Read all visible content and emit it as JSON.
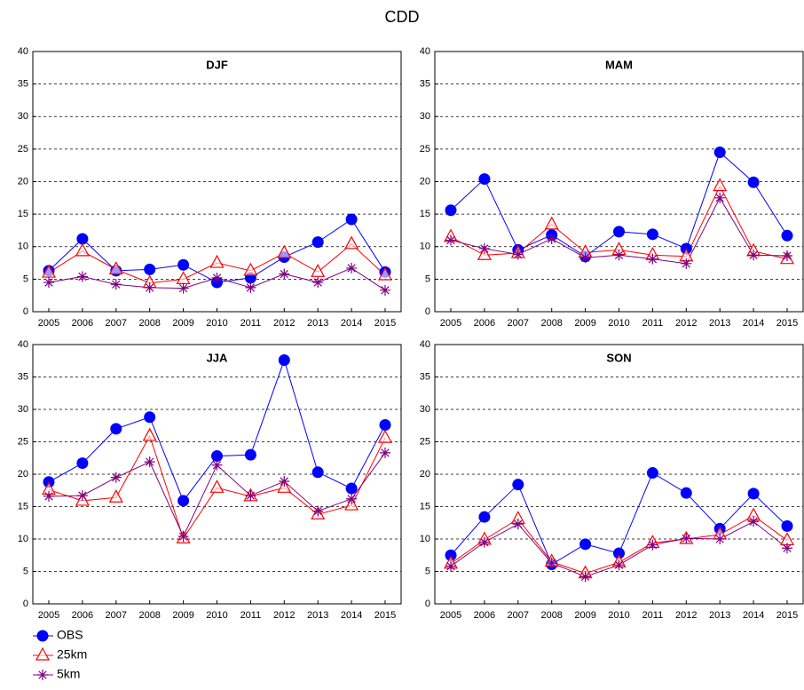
{
  "title": "CDD",
  "legend": "bottom-left",
  "chart_data": [
    {
      "type": "line",
      "title": "DJF",
      "categories": [
        "2005",
        "2006",
        "2007",
        "2008",
        "2009",
        "2010",
        "2011",
        "2012",
        "2013",
        "2014",
        "2015"
      ],
      "series": [
        {
          "name": "OBS",
          "color": "#0000ff",
          "marker": "circle",
          "values": [
            6.3,
            11.2,
            6.3,
            6.5,
            7.2,
            4.5,
            5.2,
            8.4,
            10.7,
            14.2,
            6.1
          ]
        },
        {
          "name": "25km",
          "color": "#ff0000",
          "marker": "triangle",
          "values": [
            6.0,
            9.3,
            6.5,
            4.4,
            5.0,
            7.5,
            6.3,
            9.0,
            6.1,
            10.4,
            5.6
          ]
        },
        {
          "name": "5km",
          "color": "#800080",
          "marker": "asterisk",
          "values": [
            4.5,
            5.4,
            4.2,
            3.7,
            3.6,
            5.2,
            3.7,
            5.8,
            4.5,
            6.7,
            3.3
          ]
        }
      ],
      "ylim": [
        0,
        40
      ],
      "yticks": [
        0,
        5,
        10,
        15,
        20,
        25,
        30,
        35,
        40
      ],
      "grid": true
    },
    {
      "type": "line",
      "title": "MAM",
      "categories": [
        "2005",
        "2006",
        "2007",
        "2008",
        "2009",
        "2010",
        "2011",
        "2012",
        "2013",
        "2014",
        "2015"
      ],
      "series": [
        {
          "name": "OBS",
          "color": "#0000ff",
          "marker": "circle",
          "values": [
            15.6,
            20.4,
            9.5,
            11.8,
            8.5,
            12.3,
            11.9,
            9.7,
            24.5,
            19.9,
            11.7
          ]
        },
        {
          "name": "25km",
          "color": "#ff0000",
          "marker": "triangle",
          "values": [
            11.5,
            8.7,
            9.0,
            13.4,
            9.1,
            9.5,
            8.7,
            8.5,
            19.3,
            9.3,
            8.1
          ]
        },
        {
          "name": "5km",
          "color": "#800080",
          "marker": "asterisk",
          "values": [
            11.0,
            9.7,
            8.8,
            11.2,
            8.3,
            8.7,
            8.1,
            7.4,
            17.5,
            8.7,
            8.6
          ]
        }
      ],
      "ylim": [
        0,
        40
      ],
      "yticks": [
        0,
        5,
        10,
        15,
        20,
        25,
        30,
        35,
        40
      ],
      "grid": true
    },
    {
      "type": "line",
      "title": "JJA",
      "categories": [
        "2005",
        "2006",
        "2007",
        "2008",
        "2009",
        "2010",
        "2011",
        "2012",
        "2013",
        "2014",
        "2015"
      ],
      "series": [
        {
          "name": "OBS",
          "color": "#0000ff",
          "marker": "circle",
          "values": [
            18.8,
            21.7,
            27.0,
            28.8,
            15.9,
            22.8,
            23.0,
            37.6,
            20.3,
            17.8,
            27.6
          ]
        },
        {
          "name": "25km",
          "color": "#ff0000",
          "marker": "triangle",
          "values": [
            17.6,
            15.9,
            16.4,
            25.9,
            10.1,
            17.9,
            16.6,
            17.9,
            13.8,
            15.2,
            25.6
          ]
        },
        {
          "name": "5km",
          "color": "#800080",
          "marker": "asterisk",
          "values": [
            16.6,
            16.7,
            19.5,
            21.9,
            10.4,
            21.4,
            16.7,
            18.9,
            14.3,
            16.2,
            23.3
          ]
        }
      ],
      "ylim": [
        0,
        40
      ],
      "yticks": [
        0,
        5,
        10,
        15,
        20,
        25,
        30,
        35,
        40
      ],
      "grid": true
    },
    {
      "type": "line",
      "title": "SON",
      "categories": [
        "2005",
        "2006",
        "2007",
        "2008",
        "2009",
        "2010",
        "2011",
        "2012",
        "2013",
        "2014",
        "2015"
      ],
      "series": [
        {
          "name": "OBS",
          "color": "#0000ff",
          "marker": "circle",
          "values": [
            7.5,
            13.4,
            18.4,
            6.1,
            9.2,
            7.8,
            20.2,
            17.1,
            11.6,
            17.0,
            12.0
          ]
        },
        {
          "name": "25km",
          "color": "#ff0000",
          "marker": "triangle",
          "values": [
            6.2,
            9.9,
            13.1,
            6.5,
            4.7,
            6.4,
            9.4,
            10.0,
            10.7,
            13.6,
            9.8
          ]
        },
        {
          "name": "5km",
          "color": "#800080",
          "marker": "asterisk",
          "values": [
            5.8,
            9.5,
            12.3,
            6.3,
            4.2,
            6.0,
            9.1,
            10.1,
            10.0,
            12.7,
            8.6
          ]
        }
      ],
      "ylim": [
        0,
        40
      ],
      "yticks": [
        0,
        5,
        10,
        15,
        20,
        25,
        30,
        35,
        40
      ],
      "grid": true
    }
  ]
}
